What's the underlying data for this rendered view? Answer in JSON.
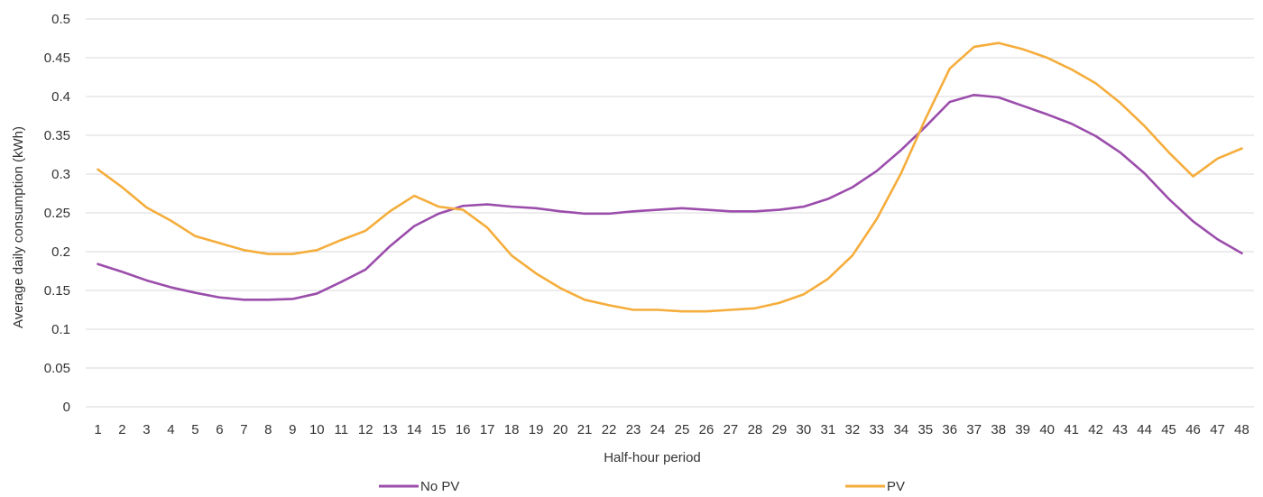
{
  "chart_data": {
    "type": "line",
    "title": "",
    "xlabel": "Half-hour  period",
    "ylabel": "Average  daily consumption  (kWh)",
    "ylim": [
      0,
      0.5
    ],
    "ytick_labels": [
      "0",
      "0.05",
      "0.1",
      "0.15",
      "0.2",
      "0.25",
      "0.3",
      "0.35",
      "0.4",
      "0.45",
      "0.5"
    ],
    "categories": [
      "1",
      "2",
      "3",
      "4",
      "5",
      "6",
      "7",
      "8",
      "9",
      "10",
      "11",
      "12",
      "13",
      "14",
      "15",
      "16",
      "17",
      "18",
      "19",
      "20",
      "21",
      "22",
      "23",
      "24",
      "25",
      "26",
      "27",
      "28",
      "29",
      "30",
      "31",
      "32",
      "33",
      "34",
      "35",
      "36",
      "37",
      "38",
      "39",
      "40",
      "41",
      "42",
      "43",
      "44",
      "45",
      "46",
      "47",
      "48"
    ],
    "grid": true,
    "legend_position": "bottom",
    "series": [
      {
        "name": "No PV",
        "color": "#9b4dab",
        "values": [
          0.184,
          0.174,
          0.163,
          0.154,
          0.147,
          0.141,
          0.138,
          0.138,
          0.139,
          0.146,
          0.161,
          0.177,
          0.207,
          0.233,
          0.249,
          0.259,
          0.261,
          0.258,
          0.256,
          0.252,
          0.249,
          0.249,
          0.252,
          0.254,
          0.256,
          0.254,
          0.252,
          0.252,
          0.254,
          0.258,
          0.268,
          0.283,
          0.304,
          0.331,
          0.361,
          0.393,
          0.402,
          0.399,
          0.388,
          0.377,
          0.365,
          0.349,
          0.328,
          0.301,
          0.268,
          0.239,
          0.216,
          0.198
        ]
      },
      {
        "name": "PV",
        "color": "#f5ad3c",
        "values": [
          0.306,
          0.283,
          0.257,
          0.24,
          0.22,
          0.211,
          0.202,
          0.197,
          0.197,
          0.202,
          0.215,
          0.227,
          0.252,
          0.272,
          0.258,
          0.254,
          0.231,
          0.195,
          0.172,
          0.153,
          0.138,
          0.131,
          0.125,
          0.125,
          0.123,
          0.123,
          0.125,
          0.127,
          0.134,
          0.145,
          0.165,
          0.195,
          0.242,
          0.301,
          0.371,
          0.436,
          0.464,
          0.469,
          0.461,
          0.45,
          0.435,
          0.417,
          0.392,
          0.362,
          0.328,
          0.297,
          0.32,
          0.333
        ]
      }
    ]
  }
}
